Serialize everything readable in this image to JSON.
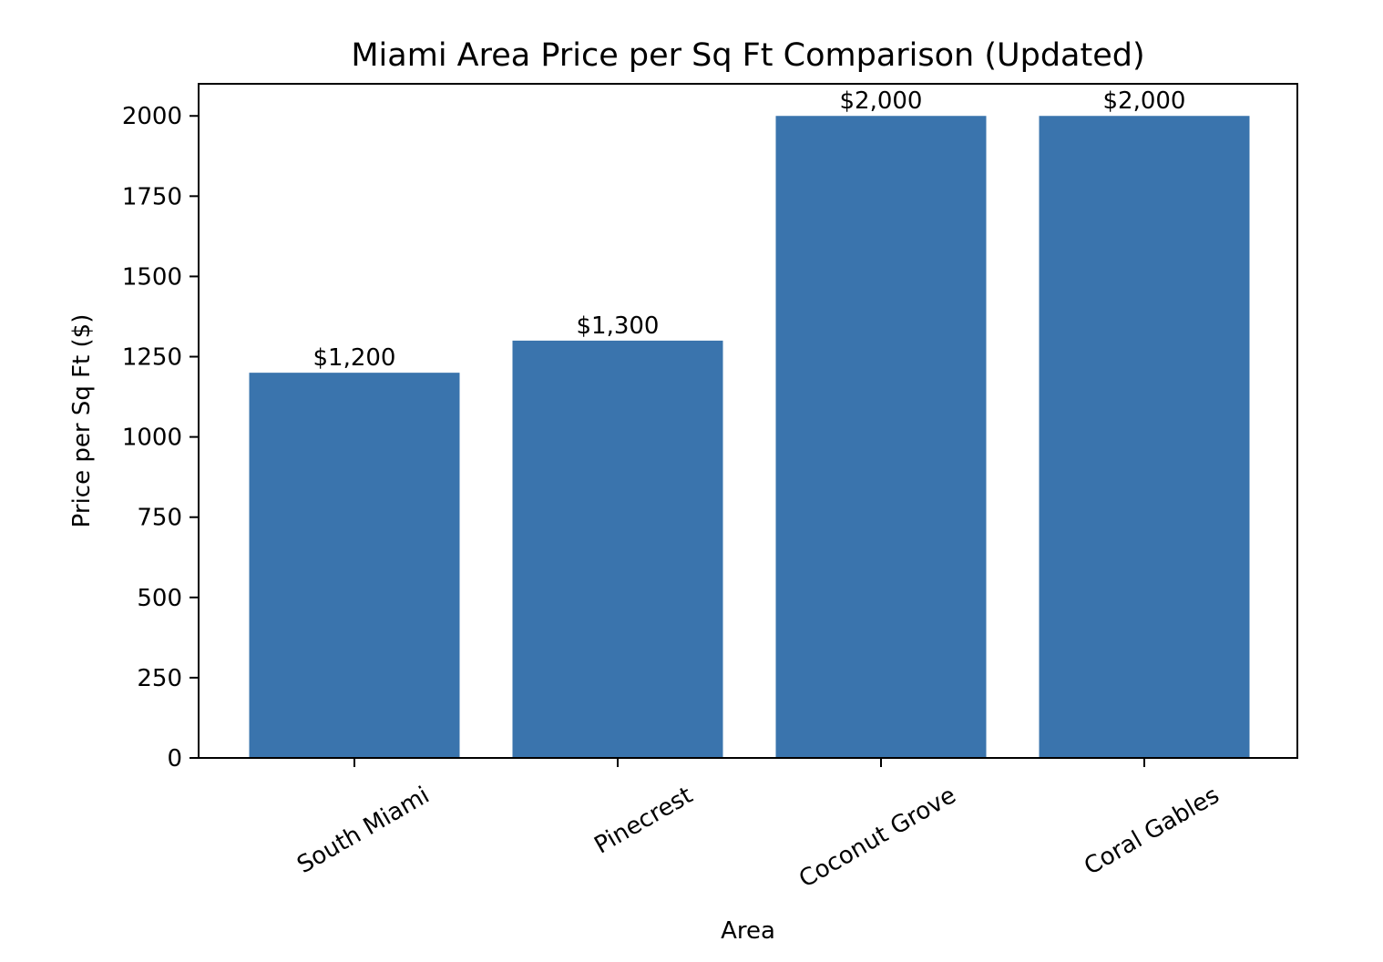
{
  "chart_data": {
    "type": "bar",
    "title": "Miami Area Price per Sq Ft Comparison (Updated)",
    "xlabel": "Area",
    "ylabel": "Price per Sq Ft ($)",
    "categories": [
      "South Miami",
      "Pinecrest",
      "Coconut Grove",
      "Coral Gables"
    ],
    "values": [
      1200,
      1300,
      2000,
      2000
    ],
    "data_labels": [
      "$1,200",
      "$1,300",
      "$2,000",
      "$2,000"
    ],
    "ylim": [
      0,
      2100
    ],
    "yticks": [
      0,
      250,
      500,
      750,
      1000,
      1250,
      1500,
      1750,
      2000
    ],
    "grid": false,
    "bar_color": "#3a74ad",
    "x_tick_rotation_deg": 30
  }
}
